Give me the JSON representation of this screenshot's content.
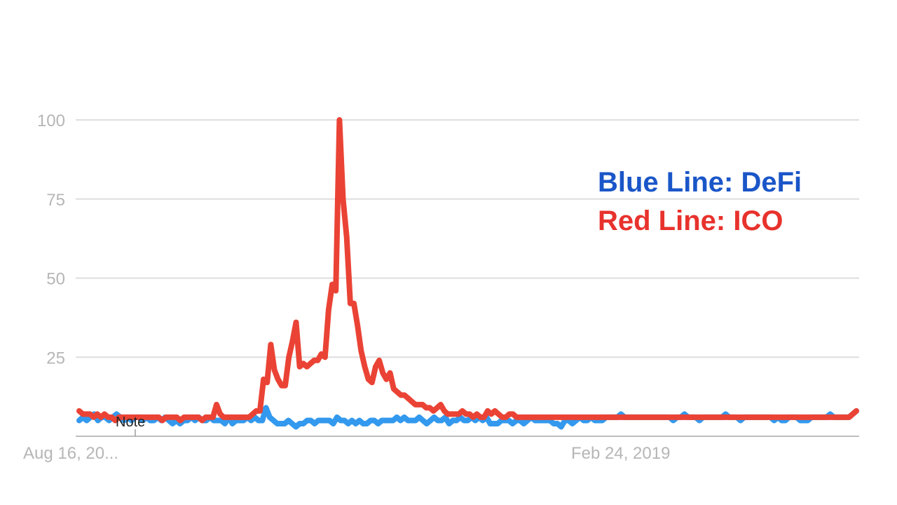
{
  "chart_data": {
    "type": "line",
    "x_tick_labels": [
      "Aug 16, 20...",
      "Feb 24, 2019"
    ],
    "ylim": [
      0,
      100
    ],
    "y_ticks": [
      25,
      50,
      75,
      100
    ],
    "grid": true,
    "annotation": "Note",
    "series": [
      {
        "name": "DeFi",
        "legend_text": "Blue Line: DeFi",
        "legend_color": "#1a56c8",
        "color": "#3399ee",
        "values": [
          5,
          6,
          5,
          6,
          7,
          5,
          6,
          6,
          5,
          6,
          7,
          6,
          5,
          6,
          5,
          6,
          6,
          5,
          6,
          5,
          5,
          6,
          5,
          6,
          5,
          4,
          5,
          4,
          5,
          5,
          6,
          5,
          6,
          5,
          5,
          6,
          5,
          5,
          5,
          4,
          6,
          4,
          5,
          5,
          5,
          6,
          5,
          6,
          5,
          5,
          9,
          6,
          5,
          4,
          4,
          4,
          5,
          4,
          3,
          4,
          4,
          5,
          5,
          4,
          5,
          5,
          5,
          5,
          4,
          6,
          5,
          5,
          4,
          5,
          4,
          5,
          4,
          4,
          5,
          5,
          4,
          5,
          5,
          5,
          5,
          6,
          5,
          6,
          5,
          5,
          5,
          6,
          5,
          4,
          5,
          6,
          5,
          5,
          6,
          4,
          5,
          5,
          6,
          5,
          5,
          6,
          5,
          6,
          5,
          6,
          4,
          4,
          4,
          5,
          5,
          5,
          4,
          5,
          5,
          4,
          5,
          6,
          5,
          5,
          5,
          5,
          5,
          4,
          4,
          3,
          5,
          5,
          4,
          5,
          6,
          5,
          5,
          6,
          5,
          5,
          5,
          6,
          6,
          6,
          6,
          7,
          6,
          6,
          6,
          6,
          6,
          6,
          6,
          6,
          6,
          6,
          6,
          6,
          6,
          5,
          6,
          6,
          7,
          6,
          6,
          6,
          5,
          6,
          6,
          6,
          6,
          6,
          6,
          7,
          6,
          6,
          6,
          5,
          6,
          6,
          6,
          6,
          6,
          6,
          6,
          6,
          5,
          6,
          5,
          5,
          6,
          6,
          6,
          5,
          5,
          5,
          6,
          6,
          6,
          6,
          6,
          7,
          6,
          6,
          6,
          6,
          6,
          7,
          8
        ]
      },
      {
        "name": "ICO",
        "legend_text": "Red Line: ICO",
        "legend_color": "#e8322d",
        "color": "#ea4335",
        "values": [
          8,
          7,
          7,
          7,
          6,
          7,
          6,
          7,
          6,
          6,
          5,
          6,
          6,
          6,
          6,
          6,
          6,
          6,
          6,
          6,
          6,
          6,
          6,
          5,
          6,
          6,
          6,
          6,
          5,
          6,
          6,
          6,
          6,
          6,
          5,
          6,
          6,
          6,
          10,
          7,
          6,
          6,
          6,
          6,
          6,
          6,
          6,
          6,
          7,
          8,
          8,
          18,
          17,
          29,
          21,
          18,
          16,
          16,
          25,
          30,
          36,
          22,
          23,
          22,
          23,
          24,
          24,
          26,
          25,
          40,
          48,
          46,
          100,
          75,
          63,
          42,
          42,
          35,
          27,
          22,
          18,
          17,
          22,
          24,
          20,
          18,
          20,
          15,
          14,
          13,
          13,
          12,
          11,
          10,
          10,
          10,
          9,
          9,
          8,
          9,
          10,
          8,
          7,
          7,
          7,
          7,
          8,
          7,
          7,
          6,
          7,
          6,
          6,
          8,
          7,
          8,
          7,
          6,
          6,
          7,
          7,
          6,
          6,
          6,
          6,
          6,
          6,
          6,
          6,
          6,
          6,
          6,
          6,
          6,
          6,
          6,
          6,
          6,
          6,
          6,
          6,
          6,
          6,
          6,
          6,
          6,
          6,
          6,
          6,
          6,
          6,
          6,
          6,
          6,
          6,
          6,
          6,
          6,
          6,
          6,
          6,
          6,
          6,
          6,
          6,
          6,
          6,
          6,
          6,
          6,
          6,
          6,
          6,
          6,
          6,
          6,
          6,
          6,
          6,
          6,
          6,
          6,
          6,
          6,
          6,
          6,
          6,
          6,
          6,
          6,
          6,
          6,
          6,
          6,
          6,
          6,
          6,
          6,
          6,
          6,
          6,
          6,
          6,
          6,
          6,
          6,
          6,
          6,
          6,
          6,
          6,
          6,
          6,
          6,
          7,
          8
        ]
      }
    ]
  }
}
